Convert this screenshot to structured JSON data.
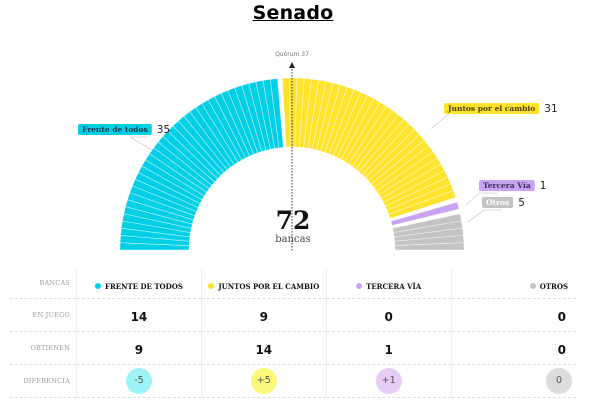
{
  "title": "Senado",
  "chart_data": {
    "type": "hemicycle",
    "title": "Senado",
    "total": 72,
    "total_label": "bancas",
    "quorum": {
      "label": "Quórum 37",
      "value": 37
    },
    "series": [
      {
        "name": "Frente de todos",
        "seats": 35,
        "color": "#00cfe6",
        "label_bg": "#00cfe6",
        "label_color": "#0a3c45"
      },
      {
        "name": "Juntos por el cambio",
        "seats": 31,
        "color": "#ffe22b",
        "label_bg": "#ffe22b",
        "label_color": "#4a3f00"
      },
      {
        "name": "Tercera Vía",
        "seats": 1,
        "color": "#c9a3f2",
        "label_bg": "#c9a3f2",
        "label_color": "#3b2a55"
      },
      {
        "name": "Otros",
        "seats": 5,
        "color": "#c4c4c4",
        "label_bg": "#c4c4c4",
        "label_color": "#ffffff"
      }
    ]
  },
  "table": {
    "header_label": "BANCAS",
    "columns": [
      {
        "name": "FRENTE DE TODOS",
        "color": "#00cfe6",
        "diff_bg": "#9ef3f7"
      },
      {
        "name": "JUNTOS POR EL CAMBIO",
        "color": "#ffe22b",
        "diff_bg": "#fbf77a"
      },
      {
        "name": "TERCERA VÍA",
        "color": "#c9a3f2",
        "diff_bg": "#e6cdf8"
      },
      {
        "name": "OTROS",
        "color": "#c4c4c4",
        "diff_bg": "#dcdcdc"
      }
    ],
    "rows": [
      {
        "label": "EN JUEGO",
        "values": [
          "14",
          "9",
          "0",
          "0"
        ]
      },
      {
        "label": "OBTIENEN",
        "values": [
          "9",
          "14",
          "1",
          "0"
        ]
      },
      {
        "label": "DIFERENCIA",
        "values": [
          "-5",
          "+5",
          "+1",
          "0"
        ]
      }
    ]
  }
}
